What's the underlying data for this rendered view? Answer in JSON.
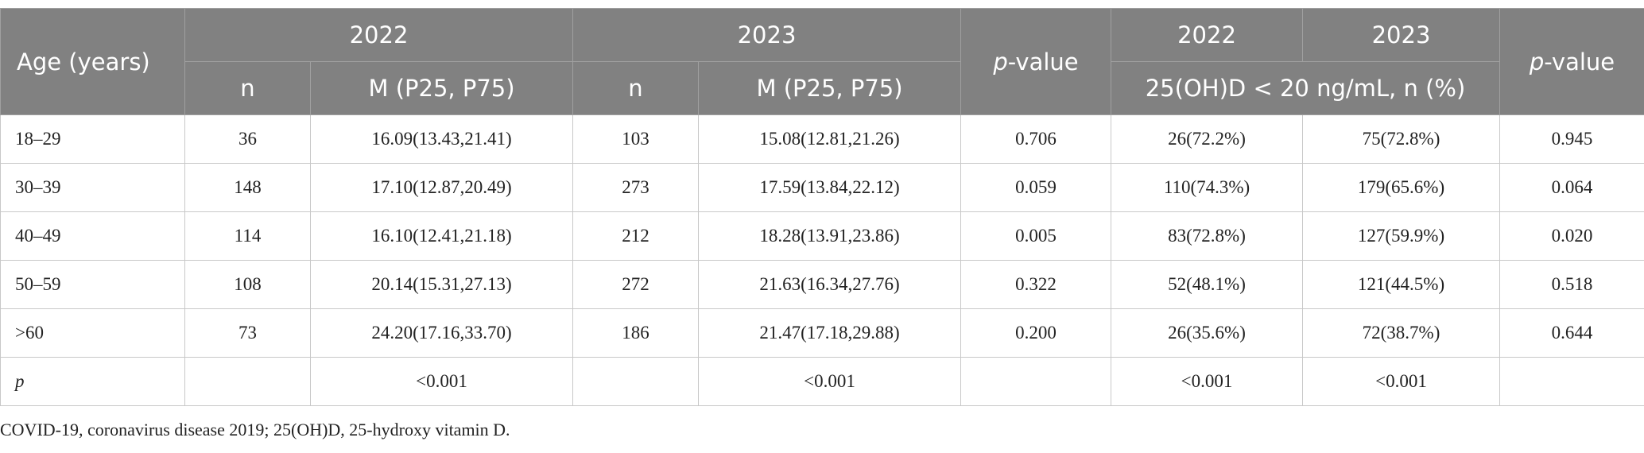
{
  "header": {
    "age": "Age (years)",
    "year_a": "2022",
    "year_b": "2023",
    "pvalue_a": "p-value",
    "prev_a": "2022",
    "prev_b": "2023",
    "pvalue_b": "p-value",
    "n_a": "n",
    "m_a": "M (P25, P75)",
    "n_b": "n",
    "m_b": "M (P25, P75)",
    "prev_label": "25(OH)D < 20 ng/mL, n (%)"
  },
  "rows": [
    [
      "18–29",
      "36",
      "16.09(13.43,21.41)",
      "103",
      "15.08(12.81,21.26)",
      "0.706",
      "26(72.2%)",
      "75(72.8%)",
      "0.945"
    ],
    [
      "30–39",
      "148",
      "17.10(12.87,20.49)",
      "273",
      "17.59(13.84,22.12)",
      "0.059",
      "110(74.3%)",
      "179(65.6%)",
      "0.064"
    ],
    [
      "40–49",
      "114",
      "16.10(12.41,21.18)",
      "212",
      "18.28(13.91,23.86)",
      "0.005",
      "83(72.8%)",
      "127(59.9%)",
      "0.020"
    ],
    [
      "50–59",
      "108",
      "20.14(15.31,27.13)",
      "272",
      "21.63(16.34,27.76)",
      "0.322",
      "52(48.1%)",
      "121(44.5%)",
      "0.518"
    ],
    [
      ">60",
      "73",
      "24.20(17.16,33.70)",
      "186",
      "21.47(17.18,29.88)",
      "0.200",
      "26(35.6%)",
      "72(38.7%)",
      "0.644"
    ],
    [
      "p",
      null,
      "<0.001",
      null,
      "<0.001",
      null,
      "<0.001",
      "<0.001",
      null
    ]
  ],
  "footnote": "COVID-19, coronavirus disease 2019; 25(OH)D, 25-hydroxy vitamin D."
}
